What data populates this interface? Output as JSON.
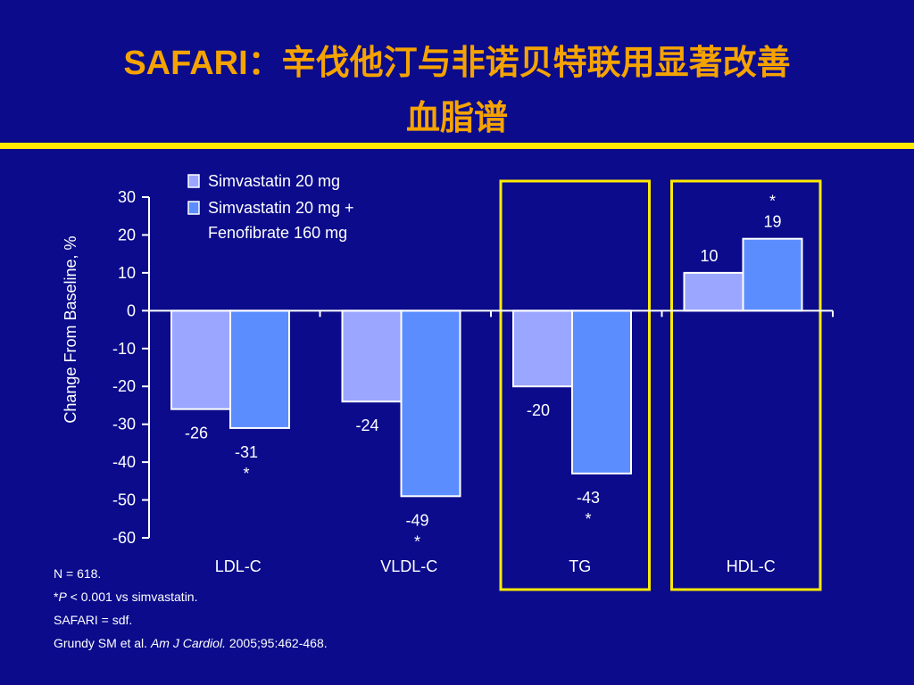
{
  "title": {
    "line1": "SAFARI：辛伐他汀与非诺贝特联用显著改善",
    "line2": "血脂谱"
  },
  "colors": {
    "background": "#0b0b8c",
    "title": "#f5a300",
    "rule": "#ffea00",
    "highlight_box": "#ffea00",
    "series1": "#9aa6ff",
    "series2": "#5c8dff"
  },
  "chart_data": {
    "type": "bar",
    "categories": [
      "LDL-C",
      "VLDL-C",
      "TG",
      "HDL-C"
    ],
    "series": [
      {
        "name": "Simvastatin 20 mg",
        "values": [
          -26,
          -24,
          -20,
          10
        ]
      },
      {
        "name": "Simvastatin 20 mg + Fenofibrate 160 mg",
        "values": [
          -31,
          -49,
          -43,
          19
        ]
      }
    ],
    "data_labels": [
      [
        "-26",
        "-24",
        "-20",
        "10"
      ],
      [
        "-31",
        "-49",
        "-43",
        "19"
      ]
    ],
    "significance": [
      [
        false,
        false,
        false,
        false
      ],
      [
        true,
        true,
        true,
        true
      ]
    ],
    "significance_mark": "*",
    "legend": {
      "items": [
        {
          "lines": [
            "Simvastatin 20 mg"
          ]
        },
        {
          "lines": [
            "Simvastatin 20 mg +",
            "Fenofibrate 160 mg"
          ]
        }
      ],
      "position": "top-left"
    },
    "ylabel": "Change From Baseline, %",
    "xlabel": "",
    "ylim": [
      -60,
      30
    ],
    "yticks": [
      30,
      20,
      10,
      0,
      -10,
      -20,
      -30,
      -40,
      -50,
      -60
    ],
    "highlighted_categories": [
      "TG",
      "HDL-C"
    ],
    "grid": false
  },
  "footnotes": {
    "n": "N = 618.",
    "p_prefix": "*",
    "p_italic": "P",
    "p_rest": " < 0.001 vs simvastatin.",
    "abbrev": "SAFARI = sdf.",
    "ref_authors": "Grundy SM et al. ",
    "ref_journal": "Am J Cardiol.",
    "ref_rest": " 2005;95:462-468."
  }
}
